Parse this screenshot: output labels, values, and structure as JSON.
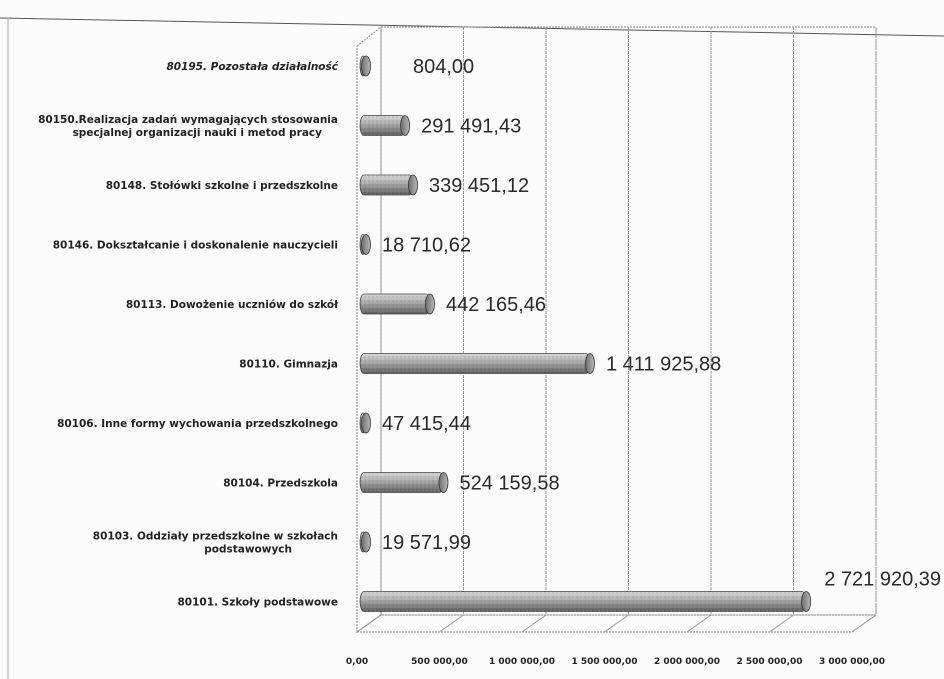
{
  "chart_data": {
    "type": "bar",
    "orientation": "horizontal",
    "categories": [
      "80195. Pozostała działalność",
      "80150.Realizacja zadań wymagających stosowania specjalnej organizacji nauki i metod pracy",
      "80148. Stołówki szkolne i przedszkolne",
      "80146. Dokształcanie i doskonalenie nauczycieli",
      "80113. Dowożenie uczniów do szkół",
      "80110. Gimnazja",
      "80106. Inne formy wychowania przedszkolnego",
      "80104. Przedszkola",
      "80103. Oddziały przedszkolne w szkołach podstawowych",
      "80101. Szkoły podstawowe"
    ],
    "category_lines": [
      [
        "80195. Pozostała działalność"
      ],
      [
        "80150.Realizacja zadań wymagających stosowania",
        "specjalnej organizacji nauki i metod pracy"
      ],
      [
        "80148. Stołówki szkolne i przedszkolne"
      ],
      [
        "80146. Dokształcanie i doskonalenie nauczycieli"
      ],
      [
        "80113. Dowożenie uczniów do szkół"
      ],
      [
        "80110. Gimnazja"
      ],
      [
        "80106. Inne formy wychowania przedszkolnego"
      ],
      [
        "80104. Przedszkola"
      ],
      [
        "80103. Oddziały przedszkolne w szkołach",
        "podstawowych"
      ],
      [
        "80101. Szkoły podstawowe"
      ]
    ],
    "values": [
      804.0,
      291491.43,
      339451.12,
      18710.62,
      442165.46,
      1411925.88,
      47415.44,
      524159.58,
      19571.99,
      2721920.39
    ],
    "value_labels": [
      "804,00",
      "291 491,43",
      "339 451,12",
      "18 710,62",
      "442 165,46",
      "1 411 925,88",
      "47 415,44",
      "524 159,58",
      "19 571,99",
      "2 721 920,39"
    ],
    "xlim": [
      0,
      3000000
    ],
    "x_ticks": [
      0,
      500000,
      1000000,
      1500000,
      2000000,
      2500000,
      3000000
    ],
    "x_tick_labels": [
      "0,00",
      "500 000,00",
      "1 000 000,00",
      "1 500 000,00",
      "2 000 000,00",
      "2 500 000,00",
      "3 000 000,00"
    ],
    "title": "",
    "xlabel": "",
    "ylabel": "",
    "grid": true,
    "bar_style": "3d cylinder",
    "colors": {
      "bar": "#8f8f8f",
      "grid": "#9a9a9a",
      "text": "#222222"
    }
  }
}
